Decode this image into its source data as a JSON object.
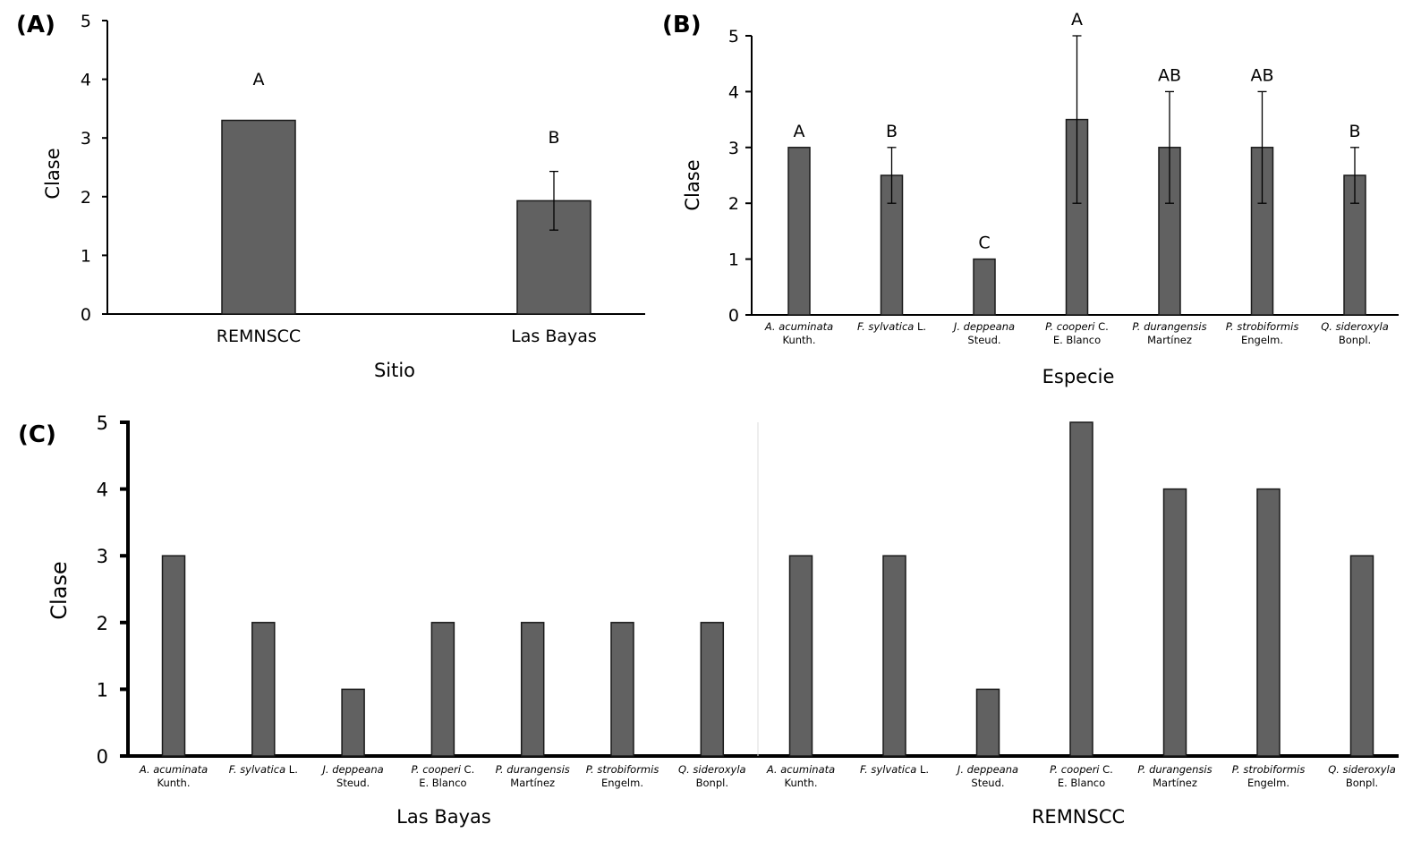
{
  "chart_data": [
    {
      "panel": "(A)",
      "type": "bar",
      "categories": [
        "REMNSCC",
        "Las Bayas"
      ],
      "values": [
        3.3,
        1.93
      ],
      "error_low": [
        3.3,
        1.43
      ],
      "error_high": [
        3.3,
        2.43
      ],
      "significance": [
        "A",
        "B"
      ],
      "xlabel": "Sitio",
      "ylabel": "Clase",
      "ylim": [
        0,
        5
      ],
      "yticks": [
        "0",
        "1",
        "2",
        "3",
        "4",
        "5"
      ]
    },
    {
      "panel": "(B)",
      "type": "bar",
      "categories": [
        {
          "name": "A. acuminata",
          "author": "Kunth."
        },
        {
          "name": "F. sylvatica",
          "author": "L."
        },
        {
          "name": "J. deppeana",
          "author": "Steud."
        },
        {
          "name": "P. cooperi",
          "author": "C. E. Blanco"
        },
        {
          "name": "P. durangensis",
          "author": "Martínez"
        },
        {
          "name": "P. strobiformis",
          "author": "Engelm."
        },
        {
          "name": "Q. sideroxyla",
          "author": "Bonpl."
        }
      ],
      "values": [
        3,
        2.5,
        1,
        3.5,
        3,
        3,
        2.5
      ],
      "error_low": [
        3,
        2,
        1,
        2,
        2,
        2,
        2
      ],
      "error_high": [
        3,
        3,
        1,
        5,
        4,
        4,
        3
      ],
      "significance": [
        "A",
        "B",
        "C",
        "A",
        "AB",
        "AB",
        "B"
      ],
      "xlabel": "Especie",
      "ylabel": "Clase",
      "ylim": [
        0,
        5
      ],
      "yticks": [
        "0",
        "1",
        "2",
        "3",
        "4",
        "5"
      ]
    },
    {
      "panel": "(C)",
      "type": "bar",
      "groups": [
        {
          "site": "Las Bayas",
          "categories": [
            {
              "name": "A. acuminata",
              "author": "Kunth."
            },
            {
              "name": "F. sylvatica",
              "author": "L."
            },
            {
              "name": "J. deppeana",
              "author": "Steud."
            },
            {
              "name": "P. cooperi",
              "author": "C. E. Blanco"
            },
            {
              "name": "P. durangensis",
              "author": "Martínez"
            },
            {
              "name": "P. strobiformis",
              "author": "Engelm."
            },
            {
              "name": "Q. sideroxyla",
              "author": "Bonpl."
            }
          ],
          "values": [
            3,
            2,
            1,
            2,
            2,
            2,
            2
          ]
        },
        {
          "site": "REMNSCC",
          "categories": [
            {
              "name": "A. acuminata",
              "author": "Kunth."
            },
            {
              "name": "F. sylvatica",
              "author": "L."
            },
            {
              "name": "J. deppeana",
              "author": "Steud."
            },
            {
              "name": "P. cooperi",
              "author": "C. E. Blanco"
            },
            {
              "name": "P. durangensis",
              "author": "Martínez"
            },
            {
              "name": "P. strobiformis",
              "author": "Engelm."
            },
            {
              "name": "Q. sideroxyla",
              "author": "Bonpl."
            }
          ],
          "values": [
            3,
            3,
            1,
            5,
            4,
            4,
            3
          ]
        }
      ],
      "ylabel": "Clase",
      "ylim": [
        0,
        5
      ],
      "yticks": [
        "0",
        "1",
        "2",
        "3",
        "4",
        "5"
      ]
    }
  ],
  "colors": {
    "bar": "#616161",
    "axis": "#000000"
  }
}
